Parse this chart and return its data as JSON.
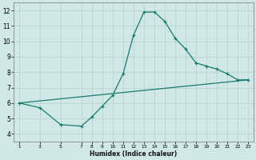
{
  "title": "",
  "xlabel": "Humidex (Indice chaleur)",
  "ylabel": "",
  "background_color": "#cfe8e5",
  "grid_color": "#b5d5d0",
  "line_color": "#1a7a6e",
  "x_ticks": [
    1,
    3,
    5,
    7,
    8,
    9,
    10,
    11,
    12,
    13,
    14,
    15,
    16,
    17,
    18,
    19,
    20,
    21,
    22,
    23
  ],
  "ylim": [
    3.5,
    12.5
  ],
  "xlim": [
    0.5,
    23.5
  ],
  "yticks": [
    4,
    5,
    6,
    7,
    8,
    9,
    10,
    11,
    12
  ],
  "curve1_x": [
    1,
    3,
    5,
    7,
    8,
    9,
    10,
    11,
    12,
    13,
    14,
    15,
    16,
    17,
    18,
    19,
    20,
    21,
    22,
    23
  ],
  "curve1_y": [
    6.0,
    5.7,
    4.6,
    4.5,
    5.1,
    5.8,
    6.5,
    7.9,
    10.4,
    11.9,
    11.9,
    11.3,
    10.2,
    9.5,
    8.6,
    8.4,
    8.2,
    7.9,
    7.5,
    7.5
  ],
  "curve2_x": [
    1,
    23
  ],
  "curve2_y": [
    6.0,
    7.5
  ]
}
